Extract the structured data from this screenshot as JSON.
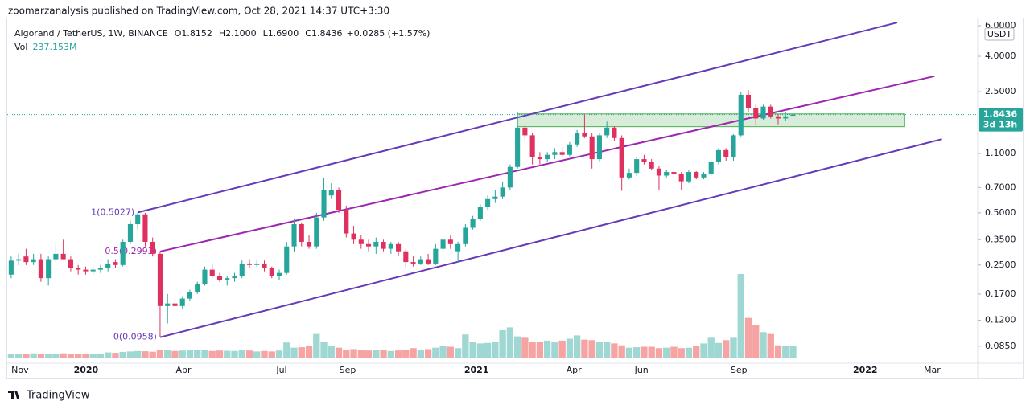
{
  "header": {
    "publisher": "zoomarzanalysis published on TradingView.com, Oct 28, 2021 14:37 UTC+3:30",
    "logo": "TradingView"
  },
  "chart_data": {
    "type": "candlestick",
    "title": "Algorand / TetherUS, 1W, BINANCE",
    "ohlc_legend": [
      {
        "key": "O",
        "value": "1.8152"
      },
      {
        "key": "H",
        "value": "2.1000"
      },
      {
        "key": "L",
        "value": "1.6900"
      },
      {
        "key": "C",
        "value": "1.8436"
      }
    ],
    "change": "+0.0285 (+1.57%)",
    "volume_label": "Vol",
    "volume_value": "237.153M",
    "currency": "USDT",
    "price_label": "1.8436",
    "countdown": "3d 13h",
    "log_scale": true,
    "up_color": "#26a69a",
    "down_color": "#e0305f",
    "volume_up_color": "#9fd8d2",
    "volume_down_color": "#f5a3a3",
    "ylim": [
      0.0693,
      6.68
    ],
    "yticks": [
      {
        "value": 6,
        "label": "6.0000"
      },
      {
        "value": 4,
        "label": "4.0000"
      },
      {
        "value": 2.5,
        "label": "2.5000"
      },
      {
        "value": 1.1,
        "label": "1.1000"
      },
      {
        "value": 0.7,
        "label": "0.7000"
      },
      {
        "value": 0.5,
        "label": "0.5000"
      },
      {
        "value": 0.35,
        "label": "0.3500"
      },
      {
        "value": 0.25,
        "label": "0.2500"
      },
      {
        "value": 0.17,
        "label": "0.1700"
      },
      {
        "value": 0.12,
        "label": "0.1200"
      },
      {
        "value": 0.085,
        "label": "0.0850"
      }
    ],
    "xlim": [
      -1.5,
      129.8
    ],
    "xticks": [
      {
        "value": 1.19,
        "label": "Nov"
      },
      {
        "value": 10.05,
        "label": "2020"
      },
      {
        "value": 23.14,
        "label": "Apr"
      },
      {
        "value": 36.32,
        "label": "Jul"
      },
      {
        "value": 45.19,
        "label": "Sep"
      },
      {
        "value": 62.49,
        "label": "2021"
      },
      {
        "value": 75.57,
        "label": "Apr"
      },
      {
        "value": 84.65,
        "label": "Jun"
      },
      {
        "value": 97.73,
        "label": "Sep"
      },
      {
        "value": 114.7,
        "label": "2022"
      },
      {
        "value": 123.68,
        "label": "Mar"
      }
    ],
    "ohlc": [
      [
        0.22,
        0.28,
        0.21,
        0.265
      ],
      [
        0.265,
        0.29,
        0.25,
        0.27
      ],
      [
        0.28,
        0.31,
        0.25,
        0.26
      ],
      [
        0.26,
        0.29,
        0.25,
        0.27
      ],
      [
        0.27,
        0.29,
        0.2,
        0.21
      ],
      [
        0.21,
        0.28,
        0.19,
        0.27
      ],
      [
        0.27,
        0.33,
        0.26,
        0.29
      ],
      [
        0.29,
        0.35,
        0.27,
        0.27
      ],
      [
        0.27,
        0.28,
        0.23,
        0.24
      ],
      [
        0.24,
        0.25,
        0.22,
        0.235
      ],
      [
        0.235,
        0.245,
        0.22,
        0.23
      ],
      [
        0.23,
        0.245,
        0.22,
        0.235
      ],
      [
        0.235,
        0.25,
        0.225,
        0.24
      ],
      [
        0.24,
        0.27,
        0.23,
        0.255
      ],
      [
        0.26,
        0.27,
        0.24,
        0.25
      ],
      [
        0.25,
        0.35,
        0.245,
        0.34
      ],
      [
        0.34,
        0.45,
        0.33,
        0.43
      ],
      [
        0.43,
        0.5027,
        0.4,
        0.49
      ],
      [
        0.49,
        0.5,
        0.32,
        0.34
      ],
      [
        0.34,
        0.36,
        0.28,
        0.29
      ],
      [
        0.29,
        0.3,
        0.0958,
        0.145
      ],
      [
        0.145,
        0.17,
        0.115,
        0.15
      ],
      [
        0.15,
        0.16,
        0.13,
        0.145
      ],
      [
        0.145,
        0.165,
        0.14,
        0.16
      ],
      [
        0.16,
        0.18,
        0.155,
        0.175
      ],
      [
        0.175,
        0.2,
        0.17,
        0.195
      ],
      [
        0.195,
        0.245,
        0.19,
        0.235
      ],
      [
        0.235,
        0.25,
        0.21,
        0.215
      ],
      [
        0.215,
        0.225,
        0.2,
        0.205
      ],
      [
        0.205,
        0.215,
        0.19,
        0.21
      ],
      [
        0.21,
        0.225,
        0.2,
        0.215
      ],
      [
        0.215,
        0.265,
        0.21,
        0.255
      ],
      [
        0.255,
        0.27,
        0.24,
        0.25
      ],
      [
        0.25,
        0.27,
        0.245,
        0.255
      ],
      [
        0.255,
        0.265,
        0.23,
        0.24
      ],
      [
        0.24,
        0.245,
        0.21,
        0.215
      ],
      [
        0.215,
        0.235,
        0.205,
        0.225
      ],
      [
        0.225,
        0.34,
        0.22,
        0.32
      ],
      [
        0.32,
        0.46,
        0.3,
        0.43
      ],
      [
        0.43,
        0.44,
        0.32,
        0.34
      ],
      [
        0.34,
        0.37,
        0.31,
        0.32
      ],
      [
        0.32,
        0.5,
        0.31,
        0.47
      ],
      [
        0.47,
        0.79,
        0.45,
        0.68
      ],
      [
        0.63,
        0.74,
        0.6,
        0.68
      ],
      [
        0.68,
        0.7,
        0.5,
        0.52
      ],
      [
        0.52,
        0.55,
        0.36,
        0.38
      ],
      [
        0.38,
        0.42,
        0.33,
        0.35
      ],
      [
        0.35,
        0.37,
        0.31,
        0.33
      ],
      [
        0.33,
        0.35,
        0.3,
        0.32
      ],
      [
        0.32,
        0.36,
        0.29,
        0.34
      ],
      [
        0.34,
        0.35,
        0.3,
        0.31
      ],
      [
        0.31,
        0.34,
        0.29,
        0.33
      ],
      [
        0.33,
        0.34,
        0.28,
        0.3
      ],
      [
        0.3,
        0.31,
        0.24,
        0.26
      ],
      [
        0.26,
        0.28,
        0.245,
        0.255
      ],
      [
        0.255,
        0.28,
        0.25,
        0.27
      ],
      [
        0.27,
        0.29,
        0.25,
        0.255
      ],
      [
        0.255,
        0.33,
        0.25,
        0.31
      ],
      [
        0.31,
        0.36,
        0.3,
        0.35
      ],
      [
        0.35,
        0.37,
        0.31,
        0.33
      ],
      [
        0.3,
        0.34,
        0.26,
        0.33
      ],
      [
        0.33,
        0.43,
        0.32,
        0.41
      ],
      [
        0.41,
        0.48,
        0.4,
        0.46
      ],
      [
        0.46,
        0.56,
        0.45,
        0.54
      ],
      [
        0.54,
        0.63,
        0.52,
        0.6
      ],
      [
        0.6,
        0.68,
        0.57,
        0.62
      ],
      [
        0.62,
        0.75,
        0.6,
        0.7
      ],
      [
        0.7,
        0.95,
        0.68,
        0.92
      ],
      [
        0.92,
        1.9,
        0.9,
        1.55
      ],
      [
        1.55,
        1.62,
        1.3,
        1.4
      ],
      [
        1.4,
        1.45,
        0.95,
        1.05
      ],
      [
        1.05,
        1.12,
        0.95,
        1.02
      ],
      [
        1.02,
        1.12,
        0.98,
        1.08
      ],
      [
        1.08,
        1.18,
        1.02,
        1.12
      ],
      [
        1.12,
        1.2,
        1.05,
        1.08
      ],
      [
        1.08,
        1.28,
        1.06,
        1.24
      ],
      [
        1.24,
        1.5,
        1.2,
        1.45
      ],
      [
        1.45,
        1.85,
        1.35,
        1.38
      ],
      [
        1.38,
        1.45,
        0.9,
        1.02
      ],
      [
        1.02,
        1.45,
        0.98,
        1.4
      ],
      [
        1.4,
        1.68,
        1.35,
        1.55
      ],
      [
        1.55,
        1.58,
        1.3,
        1.35
      ],
      [
        1.35,
        1.4,
        0.67,
        0.8
      ],
      [
        0.8,
        0.9,
        0.78,
        0.85
      ],
      [
        0.85,
        1.05,
        0.82,
        1.02
      ],
      [
        1.02,
        1.08,
        0.95,
        0.98
      ],
      [
        0.98,
        1.02,
        0.88,
        0.9
      ],
      [
        0.9,
        0.93,
        0.68,
        0.82
      ],
      [
        0.82,
        0.88,
        0.8,
        0.86
      ],
      [
        0.86,
        0.9,
        0.8,
        0.84
      ],
      [
        0.84,
        0.86,
        0.68,
        0.76
      ],
      [
        0.76,
        0.88,
        0.74,
        0.86
      ],
      [
        0.86,
        0.87,
        0.78,
        0.8
      ],
      [
        0.8,
        0.86,
        0.78,
        0.84
      ],
      [
        0.84,
        1.0,
        0.82,
        0.98
      ],
      [
        0.98,
        1.18,
        0.95,
        1.15
      ],
      [
        1.15,
        1.18,
        1.0,
        1.05
      ],
      [
        1.05,
        1.42,
        1.0,
        1.4
      ],
      [
        1.4,
        2.5,
        1.38,
        2.4
      ],
      [
        2.4,
        2.55,
        1.9,
        2.0
      ],
      [
        2.0,
        2.1,
        1.6,
        1.75
      ],
      [
        1.75,
        2.1,
        1.72,
        2.05
      ],
      [
        2.05,
        2.1,
        1.75,
        1.8
      ],
      [
        1.8,
        1.85,
        1.62,
        1.75
      ],
      [
        1.75,
        1.9,
        1.7,
        1.8
      ],
      [
        1.8152,
        2.1,
        1.69,
        1.8436
      ]
    ],
    "volumes": [
      80,
      70,
      75,
      90,
      85,
      80,
      75,
      90,
      70,
      80,
      75,
      70,
      85,
      110,
      100,
      120,
      130,
      140,
      135,
      125,
      170,
      160,
      140,
      150,
      165,
      155,
      160,
      140,
      150,
      145,
      140,
      165,
      150,
      130,
      140,
      130,
      150,
      320,
      210,
      220,
      250,
      500,
      330,
      250,
      210,
      170,
      180,
      160,
      150,
      170,
      160,
      140,
      150,
      160,
      200,
      170,
      180,
      210,
      240,
      230,
      200,
      490,
      330,
      300,
      310,
      330,
      580,
      640,
      450,
      420,
      340,
      330,
      360,
      340,
      360,
      400,
      470,
      380,
      370,
      340,
      330,
      300,
      260,
      210,
      220,
      230,
      230,
      200,
      210,
      230,
      200,
      210,
      250,
      300,
      420,
      310,
      370,
      420,
      1770,
      840,
      680,
      540,
      500,
      260,
      245,
      237.153
    ],
    "channels": [
      {
        "label": "1(0.5027)",
        "from": [
          17,
          0.5027
        ],
        "to": [
          119,
          6.26
        ],
        "color": "#673ab7"
      },
      {
        "label": "0.5(0.2993)",
        "from": [
          20,
          0.2993
        ],
        "to": [
          124,
          3.07
        ],
        "color": "#9c27b0"
      },
      {
        "label": "0(0.0958)",
        "from": [
          20,
          0.0958
        ],
        "to": [
          125,
          1.33
        ],
        "color": "#673ab7"
      }
    ],
    "zone": {
      "x": [
        68,
        120
      ],
      "y": [
        1.57,
        1.86
      ],
      "color": "#4caf50"
    }
  }
}
